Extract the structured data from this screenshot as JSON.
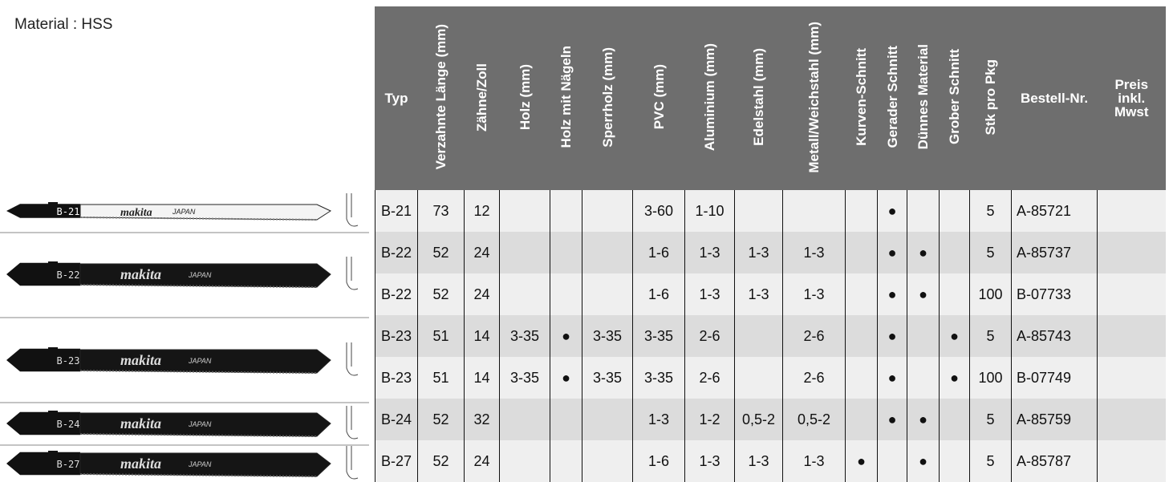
{
  "material": "Material : HSS",
  "blades": [
    {
      "code": "B-21",
      "brand": "makita",
      "origin": "JAPAN"
    },
    {
      "code": "B-22",
      "brand": "makita",
      "origin": "JAPAN"
    },
    {
      "code": "B-23",
      "brand": "makita",
      "origin": "JAPAN"
    },
    {
      "code": "B-24",
      "brand": "makita",
      "origin": "JAPAN"
    },
    {
      "code": "B-27",
      "brand": "makita",
      "origin": "JAPAN"
    }
  ],
  "table": {
    "columns": [
      "Typ",
      "Verzahnte Länge (mm)",
      "Zähne/Zoll",
      "Holz (mm)",
      "Holz mit Nägeln",
      "Sperrholz (mm)",
      "PVC (mm)",
      "Aluminium (mm)",
      "Edelstahl (mm)",
      "Metall/Weichstahl (mm)",
      "Kurven-Schnitt",
      "Gerader Schnitt",
      "Dünnes Material",
      "Grober Schnitt",
      "Stk pro Pkg",
      "Bestell-Nr.",
      "Preis inkl. Mwst"
    ],
    "rows": [
      [
        "B-21",
        "73",
        "12",
        null,
        null,
        null,
        "3-60",
        "1-10",
        null,
        null,
        null,
        "●",
        null,
        null,
        "5",
        "A-85721",
        null
      ],
      [
        "B-22",
        "52",
        "24",
        null,
        null,
        null,
        "1-6",
        "1-3",
        "1-3",
        "1-3",
        null,
        "●",
        "●",
        null,
        "5",
        "A-85737",
        null
      ],
      [
        "B-22",
        "52",
        "24",
        null,
        null,
        null,
        "1-6",
        "1-3",
        "1-3",
        "1-3",
        null,
        "●",
        "●",
        null,
        "100",
        "B-07733",
        null
      ],
      [
        "B-23",
        "51",
        "14",
        "3-35",
        "●",
        "3-35",
        "3-35",
        "2-6",
        null,
        "2-6",
        null,
        "●",
        null,
        "●",
        "5",
        "A-85743",
        null
      ],
      [
        "B-23",
        "51",
        "14",
        "3-35",
        "●",
        "3-35",
        "3-35",
        "2-6",
        null,
        "2-6",
        null,
        "●",
        null,
        "●",
        "100",
        "B-07749",
        null
      ],
      [
        "B-24",
        "52",
        "32",
        null,
        null,
        null,
        "1-3",
        "1-2",
        "0,5-2",
        "0,5-2",
        null,
        "●",
        "●",
        null,
        "5",
        "A-85759",
        null
      ],
      [
        "B-27",
        "52",
        "24",
        null,
        null,
        null,
        "1-6",
        "1-3",
        "1-3",
        "1-3",
        "●",
        null,
        "●",
        null,
        "5",
        "A-85787",
        null
      ]
    ]
  }
}
